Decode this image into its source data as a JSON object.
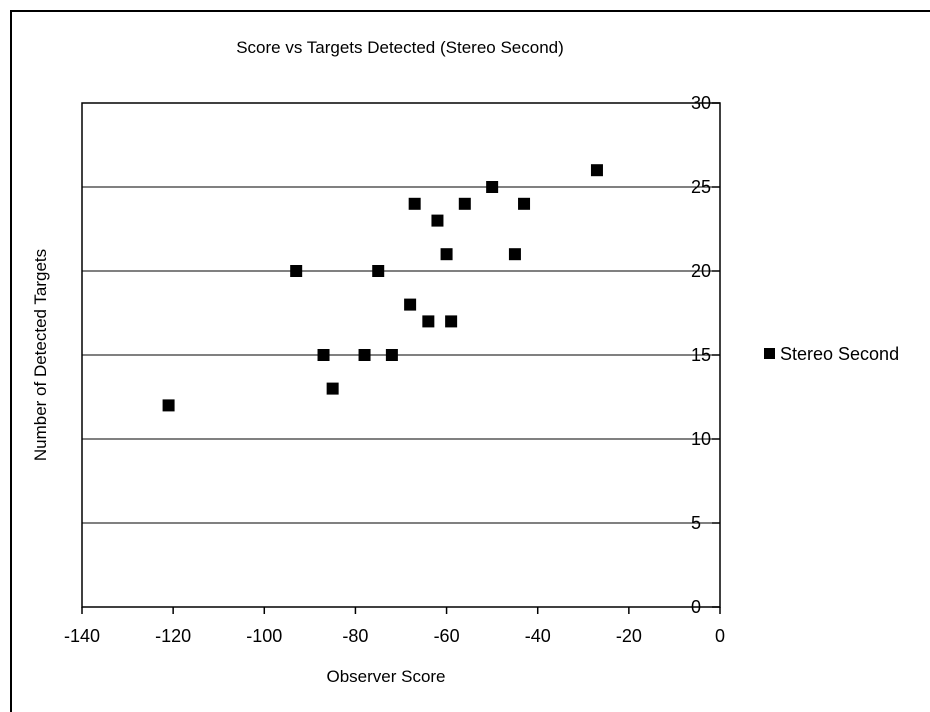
{
  "chart_data": {
    "type": "scatter",
    "title": "Score vs Targets Detected (Stereo Second)",
    "xlabel": "Observer Score",
    "ylabel": "Number of Detected Targets",
    "xlim": [
      -140,
      0
    ],
    "ylim": [
      0,
      30
    ],
    "xticks": [
      "-140",
      "-120",
      "-100",
      "-80",
      "-60",
      "-40",
      "-20",
      "0"
    ],
    "yticks": [
      "0",
      "5",
      "10",
      "15",
      "20",
      "25",
      "30"
    ],
    "grid": "horizontal",
    "legend": "right",
    "series": [
      {
        "name": "Stereo Second",
        "color": "#000000",
        "marker": "square",
        "points": [
          [
            -121,
            12
          ],
          [
            -93,
            20
          ],
          [
            -87,
            15
          ],
          [
            -85,
            13
          ],
          [
            -78,
            15
          ],
          [
            -75,
            20
          ],
          [
            -72,
            15
          ],
          [
            -68,
            18
          ],
          [
            -67,
            24
          ],
          [
            -64,
            17
          ],
          [
            -62,
            23
          ],
          [
            -60,
            21
          ],
          [
            -59,
            17
          ],
          [
            -56,
            24
          ],
          [
            -50,
            25
          ],
          [
            -45,
            21
          ],
          [
            -43,
            24
          ],
          [
            -27,
            26
          ]
        ]
      }
    ]
  }
}
